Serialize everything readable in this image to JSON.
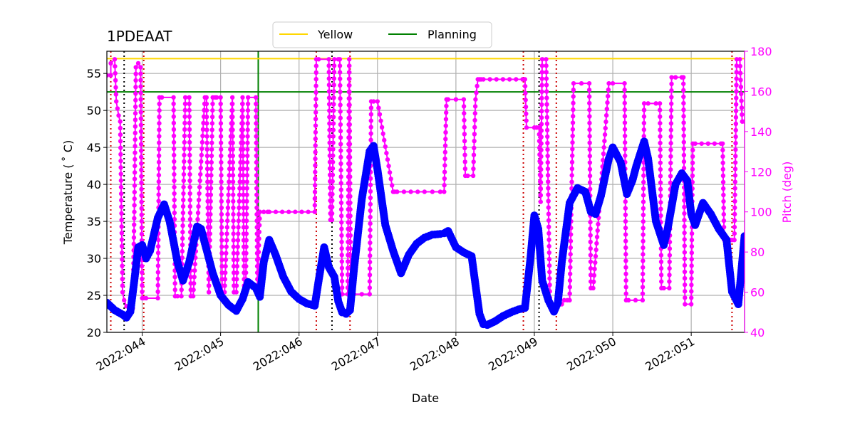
{
  "chart_data": {
    "type": "line",
    "title": "1PDEAAT",
    "xlabel": "Date",
    "ylabel": "Temperature ($^\\circ$C)",
    "ylabel_display": "Temperature ( ˚ C)",
    "y2label": "Pitch (deg)",
    "xlim": [
      43.55,
      51.68
    ],
    "ylim": [
      20,
      58
    ],
    "y2lim": [
      40,
      180
    ],
    "x_ticks": [
      {
        "value": 44,
        "label": "2022:044"
      },
      {
        "value": 45,
        "label": "2022:045"
      },
      {
        "value": 46,
        "label": "2022:046"
      },
      {
        "value": 47,
        "label": "2022:047"
      },
      {
        "value": 48,
        "label": "2022:048"
      },
      {
        "value": 49,
        "label": "2022:049"
      },
      {
        "value": 50,
        "label": "2022:050"
      },
      {
        "value": 51,
        "label": "2022:051"
      }
    ],
    "y_ticks": [
      {
        "value": 20,
        "label": "20"
      },
      {
        "value": 25,
        "label": "25"
      },
      {
        "value": 30,
        "label": "30"
      },
      {
        "value": 35,
        "label": "35"
      },
      {
        "value": 40,
        "label": "40"
      },
      {
        "value": 45,
        "label": "45"
      },
      {
        "value": 50,
        "label": "50"
      },
      {
        "value": 55,
        "label": "55"
      }
    ],
    "y2_ticks": [
      {
        "value": 40,
        "label": "40"
      },
      {
        "value": 60,
        "label": "60"
      },
      {
        "value": 80,
        "label": "80"
      },
      {
        "value": 100,
        "label": "100"
      },
      {
        "value": 120,
        "label": "120"
      },
      {
        "value": 140,
        "label": "140"
      },
      {
        "value": 160,
        "label": "160"
      },
      {
        "value": 180,
        "label": "180"
      }
    ],
    "grid": true,
    "legend": {
      "placement": "top-center",
      "entries": [
        {
          "label": "Yellow",
          "color": "#ffd700"
        },
        {
          "label": "Planning",
          "color": "#008000"
        }
      ]
    },
    "limits": [
      {
        "name": "Yellow",
        "value": 57.0,
        "color": "#ffd700"
      },
      {
        "name": "Planning",
        "value": 52.5,
        "color": "#008000"
      }
    ],
    "planning_vline": {
      "x": 45.48,
      "color": "#008000"
    },
    "red_vlines": [
      43.6,
      44.02,
      46.22,
      46.65,
      48.86,
      49.28,
      51.52
    ],
    "black_vlines": [
      43.77,
      46.42,
      49.06
    ],
    "colors": {
      "temperature": "#0000ff",
      "pitch": "#ff00ff",
      "red_lines": "#cc0000",
      "black_lines": "#000000",
      "grid": "#b0b0b0",
      "y2_axis": "#ff00ff"
    },
    "series": [
      {
        "name": "Temperature",
        "axis": "left",
        "color": "#0000ff",
        "x": [
          43.55,
          43.65,
          43.75,
          43.8,
          43.85,
          43.9,
          43.95,
          44.0,
          44.05,
          44.1,
          44.2,
          44.28,
          44.35,
          44.45,
          44.52,
          44.6,
          44.7,
          44.75,
          44.8,
          44.9,
          45.0,
          45.1,
          45.2,
          45.28,
          45.35,
          45.45,
          45.5,
          45.55,
          45.62,
          45.7,
          45.8,
          45.9,
          46.0,
          46.1,
          46.2,
          46.25,
          46.32,
          46.38,
          46.45,
          46.5,
          46.55,
          46.6,
          46.65,
          46.7,
          46.8,
          46.9,
          46.95,
          47.0,
          47.1,
          47.2,
          47.3,
          47.4,
          47.5,
          47.6,
          47.7,
          47.8,
          47.85,
          47.9,
          48.0,
          48.1,
          48.2,
          48.3,
          48.35,
          48.4,
          48.5,
          48.6,
          48.7,
          48.8,
          48.88,
          48.95,
          49.0,
          49.05,
          49.1,
          49.18,
          49.25,
          49.3,
          49.35,
          49.45,
          49.55,
          49.65,
          49.72,
          49.78,
          49.85,
          49.95,
          50.0,
          50.1,
          50.18,
          50.25,
          50.3,
          50.4,
          50.45,
          50.55,
          50.65,
          50.7,
          50.8,
          50.88,
          50.95,
          51.0,
          51.05,
          51.15,
          51.25,
          51.35,
          51.45,
          51.52,
          51.6,
          51.68
        ],
        "values": [
          24.0,
          23.0,
          22.4,
          22.0,
          22.8,
          27.0,
          31.5,
          31.8,
          30.0,
          31.0,
          35.5,
          37.3,
          35.0,
          29.5,
          27.0,
          29.5,
          34.3,
          34.0,
          32.0,
          28.0,
          25.0,
          23.7,
          22.9,
          24.5,
          26.8,
          26.0,
          24.8,
          29.5,
          32.5,
          30.5,
          27.5,
          25.5,
          24.5,
          23.9,
          23.6,
          27.0,
          31.5,
          28.8,
          27.5,
          24.2,
          22.7,
          22.5,
          23.0,
          28.5,
          38.0,
          44.5,
          45.2,
          42.0,
          34.5,
          31.0,
          28.0,
          30.5,
          32.0,
          32.8,
          33.2,
          33.3,
          33.4,
          33.7,
          31.5,
          30.8,
          30.3,
          22.5,
          21.1,
          21.0,
          21.5,
          22.2,
          22.7,
          23.1,
          23.3,
          30.0,
          35.8,
          34.0,
          27.0,
          24.3,
          22.8,
          24.0,
          29.5,
          37.5,
          39.5,
          39.0,
          36.3,
          36.0,
          38.5,
          43.5,
          45.0,
          43.0,
          38.7,
          40.5,
          42.5,
          45.8,
          43.5,
          35.0,
          31.8,
          34.0,
          40.0,
          41.5,
          40.5,
          36.0,
          34.5,
          37.5,
          36.0,
          34.0,
          32.5,
          25.5,
          23.8,
          33.0
        ]
      },
      {
        "name": "Pitch",
        "axis": "right",
        "color": "#ff00ff",
        "x": [
          43.55,
          43.6,
          43.6,
          43.65,
          43.67,
          43.7,
          43.72,
          43.75,
          43.77,
          43.8,
          43.85,
          43.88,
          43.9,
          43.92,
          43.95,
          43.98,
          44.0,
          44.02,
          44.05,
          44.2,
          44.22,
          44.25,
          44.4,
          44.42,
          44.45,
          44.5,
          44.55,
          44.6,
          44.62,
          44.65,
          44.8,
          44.82,
          44.85,
          44.9,
          44.93,
          44.95,
          45.0,
          45.02,
          45.05,
          45.15,
          45.17,
          45.2,
          45.28,
          45.3,
          45.32,
          45.35,
          45.45,
          45.47,
          45.5,
          45.55,
          45.6,
          45.62,
          46.2,
          46.22,
          46.25,
          46.38,
          46.4,
          46.42,
          46.45,
          46.5,
          46.52,
          46.55,
          46.62,
          46.64,
          46.66,
          46.7,
          46.8,
          46.9,
          46.92,
          46.95,
          47.0,
          47.2,
          47.22,
          47.25,
          47.6,
          47.8,
          47.85,
          47.88,
          47.9,
          48.1,
          48.12,
          48.15,
          48.22,
          48.25,
          48.28,
          48.3,
          48.32,
          48.35,
          48.85,
          48.88,
          48.9,
          49.0,
          49.03,
          49.06,
          49.08,
          49.1,
          49.15,
          49.2,
          49.3,
          49.35,
          49.38,
          49.42,
          49.45,
          49.5,
          49.7,
          49.72,
          49.75,
          49.95,
          50.0,
          50.15,
          50.17,
          50.2,
          50.38,
          50.4,
          50.45,
          50.55,
          50.6,
          50.62,
          50.65,
          50.72,
          50.75,
          50.8,
          50.88,
          50.9,
          50.92,
          51.0,
          51.02,
          51.05,
          51.38,
          51.4,
          51.42,
          51.5,
          51.52,
          51.55,
          51.58,
          51.62,
          51.65,
          51.68
        ],
        "values": [
          168,
          168,
          174,
          176,
          155,
          148,
          145,
          60,
          56,
          53,
          52,
          52,
          100,
          172,
          174,
          172,
          57,
          57,
          57,
          57,
          157,
          157,
          157,
          58,
          58,
          58,
          157,
          157,
          58,
          58,
          157,
          157,
          60,
          157,
          157,
          157,
          157,
          60,
          60,
          157,
          60,
          60,
          157,
          60,
          60,
          157,
          157,
          60,
          100,
          100,
          100,
          100,
          100,
          176,
          176,
          176,
          96,
          96,
          176,
          176,
          176,
          59,
          59,
          176,
          59,
          59,
          59,
          59,
          155,
          155,
          155,
          110,
          110,
          110,
          110,
          110,
          110,
          156,
          156,
          156,
          118,
          118,
          118,
          156,
          166,
          166,
          166,
          166,
          166,
          166,
          142,
          142,
          142,
          142,
          105,
          176,
          176,
          54,
          54,
          54,
          56,
          56,
          56,
          164,
          164,
          62,
          62,
          164,
          164,
          164,
          56,
          56,
          56,
          154,
          154,
          154,
          154,
          62,
          62,
          62,
          167,
          167,
          167,
          167,
          54,
          54,
          134,
          134,
          134,
          134,
          86,
          86,
          86,
          86,
          176,
          176,
          145,
          145
        ]
      }
    ]
  }
}
